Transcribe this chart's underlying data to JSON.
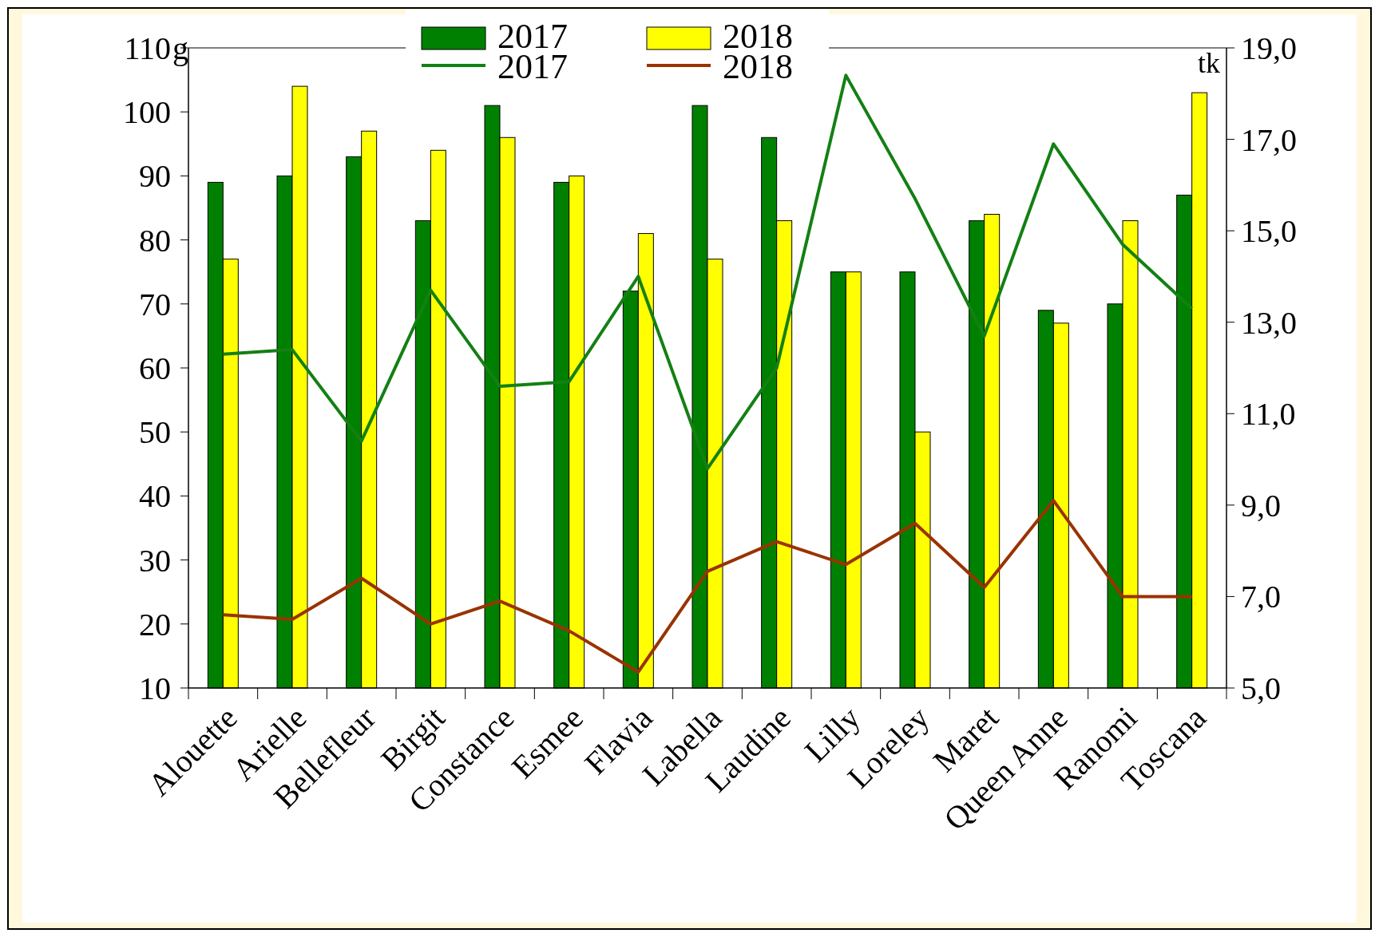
{
  "chart_data": {
    "type": "bar",
    "categories": [
      "Alouette",
      "Arielle",
      "Bellefleur",
      "Birgit",
      "Constance",
      "Esmee",
      "Flavia",
      "Labella",
      "Laudine",
      "Lilly",
      "Loreley",
      "Maret",
      "Queen Anne",
      "Ranomi",
      "Toscana"
    ],
    "series": [
      {
        "name": "2017",
        "color": "#008000",
        "values": [
          89,
          90,
          93,
          83,
          101,
          89,
          72,
          101,
          96,
          75,
          75,
          83,
          69,
          70,
          87
        ]
      },
      {
        "name": "2018",
        "color": "#ffff00",
        "values": [
          77,
          104,
          97,
          94,
          96,
          90,
          81,
          77,
          83,
          75,
          50,
          84,
          67,
          83,
          103
        ]
      },
      {
        "name": "2017",
        "type": "line",
        "axis": "y2",
        "color": "#138013",
        "values": [
          12.3,
          12.4,
          10.4,
          13.7,
          11.6,
          11.7,
          14.0,
          9.8,
          12.0,
          18.4,
          15.7,
          12.7,
          16.9,
          14.7,
          13.3
        ]
      },
      {
        "name": "2018",
        "type": "line",
        "axis": "y2",
        "color": "#993300",
        "values": [
          6.6,
          6.5,
          7.4,
          6.4,
          6.9,
          6.25,
          5.35,
          7.55,
          8.2,
          7.7,
          8.6,
          7.2,
          9.1,
          7.0,
          7.0
        ]
      }
    ],
    "ylabel": "g",
    "y2label": "tk",
    "ylim": [
      10,
      110
    ],
    "yticks": [
      10,
      20,
      30,
      40,
      50,
      60,
      70,
      80,
      90,
      100,
      110
    ],
    "y2lim": [
      5,
      19
    ],
    "y2ticks": [
      {
        "value": 5,
        "label": "5,0"
      },
      {
        "value": 7,
        "label": "7,0"
      },
      {
        "value": 9,
        "label": "9,0"
      },
      {
        "value": 11,
        "label": "11,0"
      },
      {
        "value": 13,
        "label": "13,0"
      },
      {
        "value": 15,
        "label": "15,0"
      },
      {
        "value": 17,
        "label": "17,0"
      },
      {
        "value": 19,
        "label": "19,0"
      }
    ],
    "legend": "top",
    "grid": false,
    "marker": "none",
    "line_style": "solid"
  }
}
